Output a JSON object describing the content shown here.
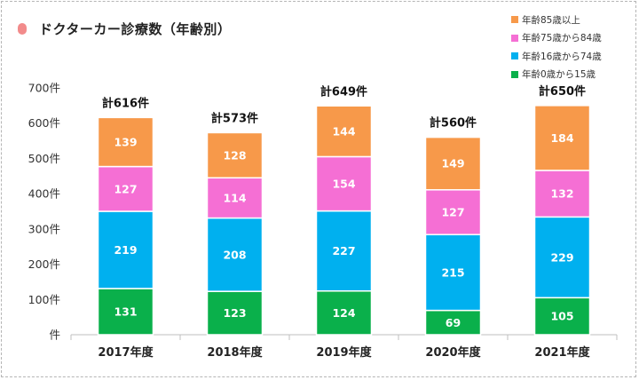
{
  "title": "ドクターカー診療数（年齢別）",
  "icons": {
    "title_marker": "pink-rounded-dot-icon"
  },
  "colors": {
    "age_0_15": "#0ab04b",
    "age_16_74": "#00b0ef",
    "age_75_84": "#f56fd4",
    "age_85_plus": "#f7994a"
  },
  "chart_data": {
    "type": "bar",
    "stacked": true,
    "title": "ドクターカー診療数（年齢別）",
    "categories": [
      "2017年度",
      "2018年度",
      "2019年度",
      "2020年度",
      "2021年度"
    ],
    "series": [
      {
        "name": "年齢0歳から15歳",
        "values": [
          131,
          123,
          124,
          69,
          105
        ],
        "color": "#0ab04b"
      },
      {
        "name": "年齢16歳から74歳",
        "values": [
          219,
          208,
          227,
          215,
          229
        ],
        "color": "#00b0ef"
      },
      {
        "name": "年齢75歳から84歳",
        "values": [
          127,
          114,
          154,
          127,
          132
        ],
        "color": "#f56fd4"
      },
      {
        "name": "年齢85歳以上",
        "values": [
          139,
          128,
          144,
          149,
          184
        ],
        "color": "#f7994a"
      }
    ],
    "totals": [
      "計616件",
      "計573件",
      "計649件",
      "計560件",
      "計650件"
    ],
    "y_ticks": [
      "件",
      "100件",
      "200件",
      "300件",
      "400件",
      "500件",
      "600件",
      "700件"
    ],
    "ylim": [
      0,
      700
    ],
    "grid": false,
    "legend": "top-right"
  }
}
